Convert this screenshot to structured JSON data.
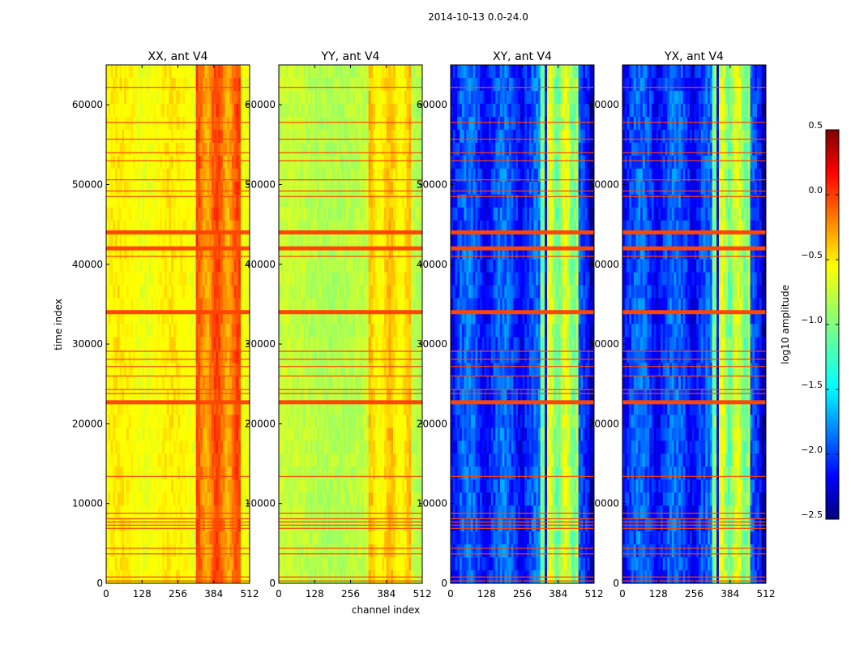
{
  "figure": {
    "suptitle": "2014-10-13 0.0-24.0"
  },
  "chart_data": {
    "type": "heatmap",
    "xlabel": "channel index",
    "ylabel": "time index",
    "xlim": [
      0,
      512
    ],
    "ylim": [
      0,
      65000
    ],
    "xticks": [
      0,
      128,
      256,
      384,
      512
    ],
    "yticks": [
      0,
      10000,
      20000,
      30000,
      40000,
      50000,
      60000
    ],
    "colorbar": {
      "label": "log10 amplitude",
      "range": [
        -2.5,
        0.5
      ],
      "ticks": [
        0.5,
        0.0,
        -0.5,
        -1.0,
        -1.5,
        -2.0,
        -2.5
      ],
      "tick_labels": [
        "0.5",
        "0.0",
        "−0.5",
        "−1.0",
        "−1.5",
        "−2.0",
        "−2.5"
      ],
      "colormap": "jet"
    },
    "flagged_rows_thick": [
      44000,
      42000,
      34000,
      22700
    ],
    "flagged_rows_thin": [
      62200,
      57800,
      55700,
      54000,
      53000,
      50600,
      49200,
      48500,
      41000,
      29100,
      28100,
      27200,
      26000,
      24300,
      23800,
      13400,
      8800,
      8100,
      7700,
      7300,
      6900,
      4400,
      3700,
      800,
      300
    ],
    "panels": [
      {
        "title": "XX, ant V4",
        "base_level": -0.55,
        "variant": "parallel-XX",
        "show_ytick_labels": true
      },
      {
        "title": "YY, ant V4",
        "base_level": -0.8,
        "variant": "parallel-YY",
        "show_ytick_labels": true
      },
      {
        "title": "XY, ant V4",
        "base_level": -2.05,
        "variant": "cross",
        "show_ytick_labels": true
      },
      {
        "title": "YX, ant V4",
        "base_level": -2.05,
        "variant": "cross",
        "show_ytick_labels": true
      }
    ]
  }
}
